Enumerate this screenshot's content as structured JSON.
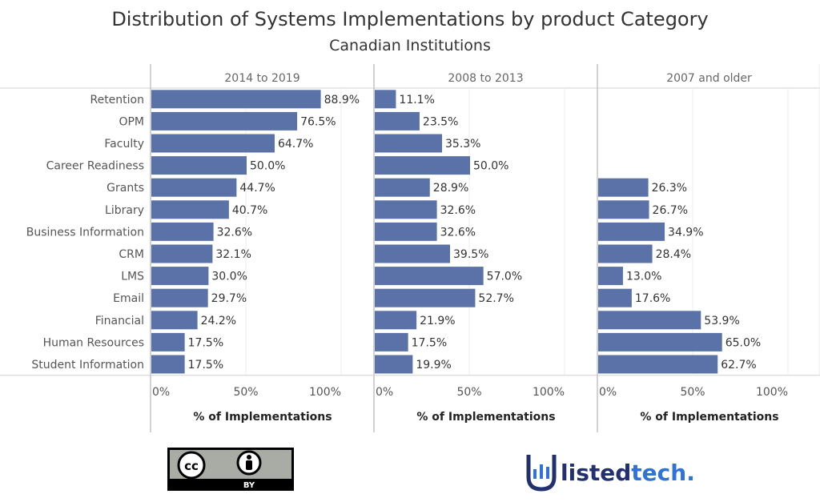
{
  "title": "Distribution of Systems Implementations by product Category",
  "subtitle": "Canadian Institutions",
  "colors": {
    "bar": "#5b72a8",
    "brand_navy": "#23306f",
    "brand_blue": "#2f73d8",
    "badge_bg": "#a8aca4"
  },
  "license_badge": {
    "label": "BY",
    "icons": [
      "cc-icon",
      "person-icon"
    ]
  },
  "brand": {
    "part1": "listed",
    "part2": "tech",
    "part3": ".",
    "icon": "listedtech-shield-icon"
  },
  "chart_data": {
    "type": "bar",
    "orientation": "horizontal",
    "categories": [
      "Retention",
      "OPM",
      "Faculty",
      "Career Readiness",
      "Grants",
      "Library",
      "Business Information",
      "CRM",
      "LMS",
      "Email",
      "Financial",
      "Human Resources",
      "Student Information"
    ],
    "xlabel": "% of Implementations",
    "xlim": [
      0,
      100
    ],
    "xticks": [
      "0%",
      "50%",
      "100%"
    ],
    "grid": true,
    "panels": [
      {
        "name": "2014 to 2019",
        "values": [
          88.9,
          76.5,
          64.7,
          50.0,
          44.7,
          40.7,
          32.6,
          32.1,
          30.0,
          29.7,
          24.2,
          17.5,
          17.5
        ]
      },
      {
        "name": "2008 to 2013",
        "values": [
          11.1,
          23.5,
          35.3,
          50.0,
          28.9,
          32.6,
          32.6,
          39.5,
          57.0,
          52.7,
          21.9,
          17.5,
          19.9
        ]
      },
      {
        "name": "2007 and older",
        "values": [
          null,
          null,
          null,
          null,
          26.3,
          26.7,
          34.9,
          28.4,
          13.0,
          17.6,
          53.9,
          65.0,
          62.7
        ]
      }
    ]
  }
}
